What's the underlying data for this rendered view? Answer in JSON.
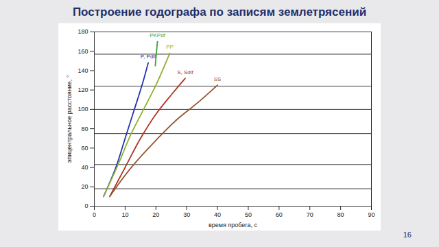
{
  "chart_data": {
    "type": "line",
    "title": "Построение годографа по записям землетрясений",
    "x_label": "время пробега, с",
    "y_label": "эпицентральное расстояние, °",
    "xlim": [
      0,
      90
    ],
    "xticks": [
      0,
      10,
      20,
      30,
      40,
      50,
      60,
      70,
      80,
      90
    ],
    "ylim": [
      0,
      180
    ],
    "yticks": [
      0,
      20,
      40,
      60,
      80,
      100,
      120,
      140,
      160,
      180
    ],
    "grid": false,
    "traces": [
      18,
      43,
      75,
      100,
      124,
      157
    ],
    "series": [
      {
        "name": "P, Pdif",
        "color": "#2335b0",
        "x": [
          3,
          7,
          10,
          13,
          15.5,
          17.5
        ],
        "values": [
          10,
          40,
          70,
          100,
          125,
          148
        ]
      },
      {
        "name": "PKPdf",
        "color": "#3aa03a",
        "x": [
          19.8,
          20.2,
          20.5
        ],
        "values": [
          145,
          160,
          170
        ]
      },
      {
        "name": "PP",
        "color": "#8fb030",
        "x": [
          3,
          8,
          12,
          16,
          20,
          24.5
        ],
        "values": [
          10,
          45,
          75,
          100,
          125,
          158
        ]
      },
      {
        "name": "S, Sdif",
        "color": "#b03322",
        "x": [
          5,
          10,
          15,
          20,
          25,
          29.5
        ],
        "values": [
          10,
          40,
          70,
          95,
          115,
          132
        ]
      },
      {
        "name": "SS",
        "color": "#94552e",
        "x": [
          5,
          12,
          20,
          27,
          34,
          40
        ],
        "values": [
          10,
          40,
          68,
          90,
          108,
          125
        ]
      }
    ]
  },
  "page_number": "16"
}
